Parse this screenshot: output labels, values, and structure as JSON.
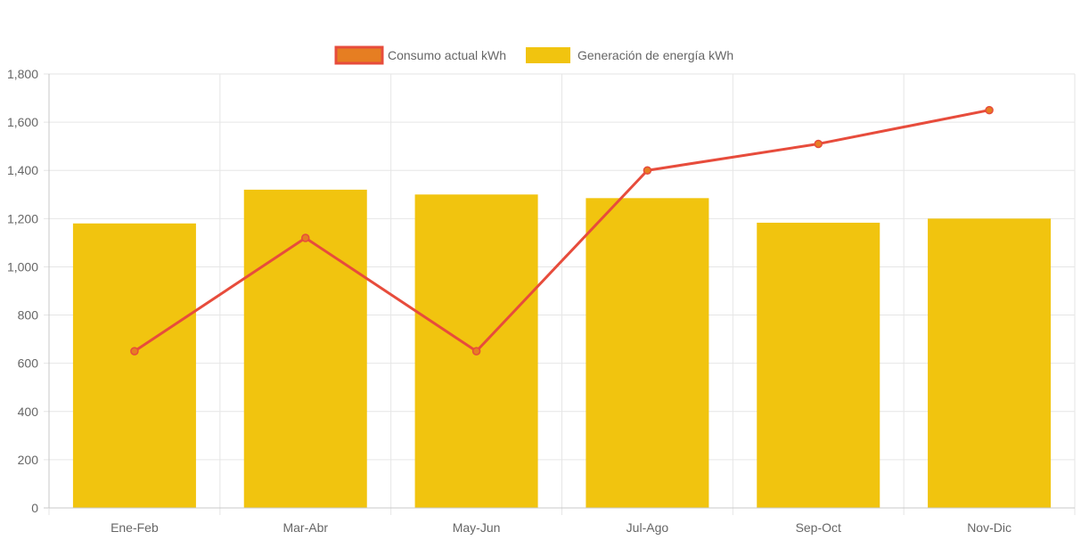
{
  "chart_data": {
    "type": "bar",
    "categories": [
      "Ene-Feb",
      "Mar-Abr",
      "May-Jun",
      "Jul-Ago",
      "Sep-Oct",
      "Nov-Dic"
    ],
    "series": [
      {
        "name": "Consumo actual kWh",
        "type": "line",
        "values": [
          650,
          1120,
          650,
          1400,
          1510,
          1650
        ],
        "color": "#e74c3c",
        "point_color": "#e67e22"
      },
      {
        "name": "Generación de energía kWh",
        "type": "bar",
        "values": [
          1180,
          1320,
          1300,
          1285,
          1183,
          1200
        ],
        "color": "#f1c40f"
      }
    ],
    "ylim": [
      0,
      1800
    ],
    "y_ticks": [
      0,
      200,
      400,
      600,
      800,
      1000,
      1200,
      1400,
      1600,
      1800
    ],
    "y_tick_labels": [
      "0",
      "200",
      "400",
      "600",
      "800",
      "1,000",
      "1,200",
      "1,400",
      "1,600",
      "1,800"
    ],
    "grid": true,
    "legend_position": "top"
  }
}
